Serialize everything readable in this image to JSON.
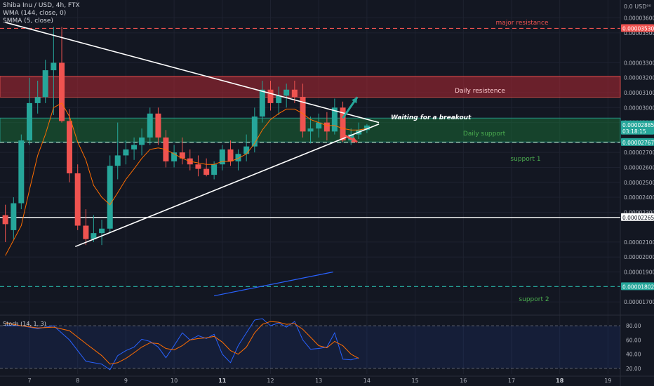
{
  "header": {
    "line1": "Shiba Inu / USD, 4h, FTX",
    "line2": "WMA (144, close, 0)",
    "line3": "SMMA (5, close)"
  },
  "stoch_label": "Stoch (14, 1, 3)",
  "colors": {
    "background": "#131722",
    "up": "#26a69a",
    "down": "#ef5350",
    "white": "#ffffff",
    "wma": "#2962ff",
    "smma": "#ff6d00",
    "resistance_zone": "#b22833",
    "support_zone": "#1b7a3a"
  },
  "chart_data": [
    {
      "type": "candlestick",
      "x_labels": [
        "7",
        "8",
        "9",
        "10",
        "11",
        "12",
        "13",
        "14",
        "15",
        "16",
        "17",
        "18",
        "19"
      ],
      "x_label_bold": [
        "11",
        "18"
      ],
      "y_ticks": [
        "0.00003600",
        "0.00003500",
        "0.00003300",
        "0.00003200",
        "0.00003100",
        "0.00003000",
        "0.00002900",
        "0.00002700",
        "0.00002600",
        "0.00002500",
        "0.00002400",
        "0.00002300",
        "0.00002100",
        "0.00002000",
        "0.00001900",
        "0.00001700"
      ],
      "y_tick_values": [
        3.6e-05,
        3.5e-05,
        3.3e-05,
        3.2e-05,
        3.1e-05,
        3e-05,
        2.9e-05,
        2.7e-05,
        2.6e-05,
        2.5e-05,
        2.4e-05,
        2.3e-05,
        2.1e-05,
        2e-05,
        1.9e-05,
        1.7e-05
      ],
      "y_top_label": "0.0 USD⁰⁰",
      "ylim": [
        1.63e-05,
        3.72e-05
      ],
      "price_tags": [
        {
          "label": "0.00003530",
          "value": 3.53e-05,
          "color": "#ef5350"
        },
        {
          "label": "0.00002885",
          "sublabel": "03:18:15",
          "value": 2.885e-05,
          "color": "#26a69a"
        },
        {
          "label": "0.00002767",
          "value": 2.767e-05,
          "color": "#26a69a"
        },
        {
          "label": "0.00002265",
          "value": 2.265e-05,
          "color": "#ffffff"
        },
        {
          "label": "0.00001802",
          "value": 1.802e-05,
          "color": "#26a69a"
        }
      ],
      "annotations": {
        "major_resistance": "major resistance",
        "daily_resistance": "Daily resistence",
        "waiting": "Waiting for a breakout",
        "daily_support": "Daily support",
        "support1": "support 1",
        "support2": "support 2"
      },
      "zones": {
        "daily_resistance": [
          3.07e-05,
          3.21e-05
        ],
        "daily_support": [
          2.77e-05,
          2.93e-05
        ]
      },
      "levels": {
        "major_resistance": 3.53e-05,
        "support1": 2.767e-05,
        "horizontal_white": 2.265e-05,
        "support2": 1.802e-05
      },
      "x_range_days": [
        6.6,
        19.6
      ],
      "candles": [
        {
          "t": 6.5,
          "o": 2.28e-05,
          "h": 2.35e-05,
          "l": 2.1e-05,
          "c": 2.22e-05
        },
        {
          "t": 6.67,
          "o": 2.18e-05,
          "h": 2.4e-05,
          "l": 2.12e-05,
          "c": 2.36e-05
        },
        {
          "t": 6.83,
          "o": 2.36e-05,
          "h": 2.82e-05,
          "l": 2.32e-05,
          "c": 2.78e-05
        },
        {
          "t": 7.0,
          "o": 2.78e-05,
          "h": 3.2e-05,
          "l": 2.75e-05,
          "c": 3.03e-05
        },
        {
          "t": 7.17,
          "o": 3.03e-05,
          "h": 3.18e-05,
          "l": 2.96e-05,
          "c": 3.07e-05
        },
        {
          "t": 7.33,
          "o": 3.07e-05,
          "h": 3.32e-05,
          "l": 3.03e-05,
          "c": 3.25e-05
        },
        {
          "t": 7.5,
          "o": 3.25e-05,
          "h": 3.54e-05,
          "l": 2.95e-05,
          "c": 3.3e-05
        },
        {
          "t": 7.67,
          "o": 3.3e-05,
          "h": 3.54e-05,
          "l": 2.9e-05,
          "c": 2.91e-05
        },
        {
          "t": 7.83,
          "o": 2.91e-05,
          "h": 2.99e-05,
          "l": 2.5e-05,
          "c": 2.56e-05
        },
        {
          "t": 8.0,
          "o": 2.56e-05,
          "h": 2.62e-05,
          "l": 2.18e-05,
          "c": 2.21e-05
        },
        {
          "t": 8.17,
          "o": 2.21e-05,
          "h": 2.32e-05,
          "l": 2.08e-05,
          "c": 2.12e-05
        },
        {
          "t": 8.33,
          "o": 2.12e-05,
          "h": 2.28e-05,
          "l": 2.1e-05,
          "c": 2.16e-05
        },
        {
          "t": 8.5,
          "o": 2.16e-05,
          "h": 2.25e-05,
          "l": 2.08e-05,
          "c": 2.19e-05
        },
        {
          "t": 8.67,
          "o": 2.19e-05,
          "h": 2.68e-05,
          "l": 2.16e-05,
          "c": 2.61e-05
        },
        {
          "t": 8.83,
          "o": 2.61e-05,
          "h": 2.9e-05,
          "l": 2.52e-05,
          "c": 2.68e-05
        },
        {
          "t": 9.0,
          "o": 2.68e-05,
          "h": 2.78e-05,
          "l": 2.62e-05,
          "c": 2.72e-05
        },
        {
          "t": 9.17,
          "o": 2.72e-05,
          "h": 2.8e-05,
          "l": 2.65e-05,
          "c": 2.75e-05
        },
        {
          "t": 9.33,
          "o": 2.75e-05,
          "h": 2.86e-05,
          "l": 2.68e-05,
          "c": 2.8e-05
        },
        {
          "t": 9.5,
          "o": 2.8e-05,
          "h": 3e-05,
          "l": 2.75e-05,
          "c": 2.96e-05
        },
        {
          "t": 9.67,
          "o": 2.96e-05,
          "h": 3e-05,
          "l": 2.75e-05,
          "c": 2.8e-05
        },
        {
          "t": 9.83,
          "o": 2.8e-05,
          "h": 2.85e-05,
          "l": 2.6e-05,
          "c": 2.64e-05
        },
        {
          "t": 10.0,
          "o": 2.64e-05,
          "h": 2.75e-05,
          "l": 2.6e-05,
          "c": 2.7e-05
        },
        {
          "t": 10.17,
          "o": 2.7e-05,
          "h": 2.8e-05,
          "l": 2.62e-05,
          "c": 2.66e-05
        },
        {
          "t": 10.33,
          "o": 2.66e-05,
          "h": 2.72e-05,
          "l": 2.58e-05,
          "c": 2.62e-05
        },
        {
          "t": 10.5,
          "o": 2.62e-05,
          "h": 2.68e-05,
          "l": 2.54e-05,
          "c": 2.59e-05
        },
        {
          "t": 10.67,
          "o": 2.59e-05,
          "h": 2.66e-05,
          "l": 2.54e-05,
          "c": 2.55e-05
        },
        {
          "t": 10.83,
          "o": 2.55e-05,
          "h": 2.64e-05,
          "l": 2.52e-05,
          "c": 2.62e-05
        },
        {
          "t": 11.0,
          "o": 2.62e-05,
          "h": 2.75e-05,
          "l": 2.58e-05,
          "c": 2.72e-05
        },
        {
          "t": 11.17,
          "o": 2.72e-05,
          "h": 2.78e-05,
          "l": 2.61e-05,
          "c": 2.64e-05
        },
        {
          "t": 11.33,
          "o": 2.64e-05,
          "h": 2.72e-05,
          "l": 2.58e-05,
          "c": 2.69e-05
        },
        {
          "t": 11.5,
          "o": 2.69e-05,
          "h": 2.82e-05,
          "l": 2.64e-05,
          "c": 2.74e-05
        },
        {
          "t": 11.67,
          "o": 2.74e-05,
          "h": 3e-05,
          "l": 2.7e-05,
          "c": 2.94e-05
        },
        {
          "t": 11.83,
          "o": 2.94e-05,
          "h": 3.18e-05,
          "l": 2.9e-05,
          "c": 3.12e-05
        },
        {
          "t": 12.0,
          "o": 3.12e-05,
          "h": 3.18e-05,
          "l": 2.98e-05,
          "c": 3.03e-05
        },
        {
          "t": 12.17,
          "o": 3.03e-05,
          "h": 3.14e-05,
          "l": 2.95e-05,
          "c": 3.08e-05
        },
        {
          "t": 12.33,
          "o": 3.08e-05,
          "h": 3.16e-05,
          "l": 3e-05,
          "c": 3.12e-05
        },
        {
          "t": 12.5,
          "o": 3.12e-05,
          "h": 3.18e-05,
          "l": 3.03e-05,
          "c": 3.07e-05
        },
        {
          "t": 12.67,
          "o": 3.07e-05,
          "h": 3.16e-05,
          "l": 2.8e-05,
          "c": 2.84e-05
        },
        {
          "t": 12.83,
          "o": 2.84e-05,
          "h": 2.94e-05,
          "l": 2.76e-05,
          "c": 2.86e-05
        },
        {
          "t": 13.0,
          "o": 2.86e-05,
          "h": 2.96e-05,
          "l": 2.8e-05,
          "c": 2.9e-05
        },
        {
          "t": 13.17,
          "o": 2.9e-05,
          "h": 2.97e-05,
          "l": 2.78e-05,
          "c": 2.84e-05
        },
        {
          "t": 13.33,
          "o": 2.84e-05,
          "h": 3.06e-05,
          "l": 2.82e-05,
          "c": 3e-05
        },
        {
          "t": 13.5,
          "o": 3e-05,
          "h": 3.04e-05,
          "l": 2.77e-05,
          "c": 2.78e-05
        },
        {
          "t": 13.67,
          "o": 2.78e-05,
          "h": 2.86e-05,
          "l": 2.75e-05,
          "c": 2.82e-05
        },
        {
          "t": 13.83,
          "o": 2.82e-05,
          "h": 2.9e-05,
          "l": 2.79e-05,
          "c": 2.85e-05
        },
        {
          "t": 14.0,
          "o": 2.85e-05,
          "h": 2.89e-05,
          "l": 2.83e-05,
          "c": 2.88e-05
        }
      ],
      "smma": [
        [
          6.5,
          2.01e-05
        ],
        [
          6.83,
          2.21e-05
        ],
        [
          7.0,
          2.45e-05
        ],
        [
          7.17,
          2.68e-05
        ],
        [
          7.33,
          2.82e-05
        ],
        [
          7.5,
          3e-05
        ],
        [
          7.67,
          3.03e-05
        ],
        [
          7.83,
          2.94e-05
        ],
        [
          8.0,
          2.77e-05
        ],
        [
          8.17,
          2.65e-05
        ],
        [
          8.33,
          2.48e-05
        ],
        [
          8.5,
          2.4e-05
        ],
        [
          8.67,
          2.35e-05
        ],
        [
          8.83,
          2.43e-05
        ],
        [
          9.0,
          2.52e-05
        ],
        [
          9.17,
          2.59e-05
        ],
        [
          9.33,
          2.66e-05
        ],
        [
          9.5,
          2.72e-05
        ],
        [
          9.67,
          2.73e-05
        ],
        [
          9.83,
          2.72e-05
        ],
        [
          10.0,
          2.69e-05
        ],
        [
          10.17,
          2.66e-05
        ],
        [
          10.33,
          2.64e-05
        ],
        [
          10.5,
          2.63e-05
        ],
        [
          10.67,
          2.62e-05
        ],
        [
          10.83,
          2.62e-05
        ],
        [
          11.0,
          2.64e-05
        ],
        [
          11.17,
          2.64e-05
        ],
        [
          11.33,
          2.66e-05
        ],
        [
          11.5,
          2.69e-05
        ],
        [
          11.67,
          2.76e-05
        ],
        [
          11.83,
          2.85e-05
        ],
        [
          12.0,
          2.92e-05
        ],
        [
          12.17,
          2.96e-05
        ],
        [
          12.33,
          2.99e-05
        ],
        [
          12.5,
          2.99e-05
        ],
        [
          12.67,
          2.96e-05
        ],
        [
          12.83,
          2.92e-05
        ],
        [
          13.0,
          2.9e-05
        ],
        [
          13.17,
          2.88e-05
        ],
        [
          13.33,
          2.88e-05
        ],
        [
          13.5,
          2.86e-05
        ],
        [
          13.67,
          2.85e-05
        ],
        [
          13.83,
          2.85e-05
        ],
        [
          14.0,
          2.86e-05
        ]
      ],
      "wma": [
        [
          10.83,
          1.74e-05
        ],
        [
          13.3,
          1.9e-05
        ]
      ],
      "triangle_lines": [
        [
          [
            6.5,
            3.57e-05
          ],
          [
            14.25,
            2.9e-05
          ]
        ],
        [
          [
            7.95,
            2.07e-05
          ],
          [
            14.25,
            2.89e-05
          ]
        ]
      ],
      "arrows": [
        {
          "from": [
            13.5,
            2.93e-05
          ],
          "to": [
            13.8,
            3.07e-05
          ],
          "color": "#26a69a"
        },
        {
          "from": [
            13.5,
            2.82e-05
          ],
          "to": [
            13.8,
            2.77e-05
          ],
          "color": "#ef5350"
        }
      ]
    },
    {
      "type": "line",
      "name": "stochastic",
      "y_ticks": [
        "80.00",
        "60.00",
        "40.00",
        "20.00"
      ],
      "y_tick_values": [
        80,
        60,
        40,
        20
      ],
      "band": [
        20,
        80
      ],
      "ylim": [
        12,
        92
      ],
      "k": [
        [
          6.5,
          80
        ],
        [
          6.83,
          80
        ],
        [
          7.17,
          76
        ],
        [
          7.5,
          80
        ],
        [
          7.83,
          60
        ],
        [
          8.17,
          30
        ],
        [
          8.5,
          26
        ],
        [
          8.67,
          18
        ],
        [
          8.83,
          38
        ],
        [
          9.0,
          45
        ],
        [
          9.17,
          50
        ],
        [
          9.33,
          61
        ],
        [
          9.5,
          58
        ],
        [
          9.67,
          50
        ],
        [
          9.83,
          35
        ],
        [
          10.0,
          52
        ],
        [
          10.17,
          70
        ],
        [
          10.33,
          60
        ],
        [
          10.5,
          66
        ],
        [
          10.67,
          62
        ],
        [
          10.83,
          68
        ],
        [
          11.0,
          40
        ],
        [
          11.17,
          28
        ],
        [
          11.33,
          52
        ],
        [
          11.5,
          70
        ],
        [
          11.67,
          88
        ],
        [
          11.83,
          90
        ],
        [
          12.0,
          80
        ],
        [
          12.17,
          84
        ],
        [
          12.33,
          78
        ],
        [
          12.5,
          86
        ],
        [
          12.67,
          60
        ],
        [
          12.83,
          47
        ],
        [
          13.0,
          48
        ],
        [
          13.17,
          50
        ],
        [
          13.33,
          70
        ],
        [
          13.5,
          33
        ],
        [
          13.67,
          32
        ],
        [
          13.83,
          35
        ]
      ],
      "d": [
        [
          6.5,
          84
        ],
        [
          6.83,
          80
        ],
        [
          7.17,
          77
        ],
        [
          7.5,
          78
        ],
        [
          7.83,
          73
        ],
        [
          8.17,
          55
        ],
        [
          8.5,
          38
        ],
        [
          8.67,
          26
        ],
        [
          8.83,
          28
        ],
        [
          9.0,
          34
        ],
        [
          9.17,
          42
        ],
        [
          9.33,
          50
        ],
        [
          9.5,
          56
        ],
        [
          9.67,
          55
        ],
        [
          9.83,
          48
        ],
        [
          10.0,
          46
        ],
        [
          10.17,
          52
        ],
        [
          10.33,
          60
        ],
        [
          10.5,
          62
        ],
        [
          10.67,
          63
        ],
        [
          10.83,
          65
        ],
        [
          11.0,
          57
        ],
        [
          11.17,
          45
        ],
        [
          11.33,
          40
        ],
        [
          11.5,
          50
        ],
        [
          11.67,
          70
        ],
        [
          11.83,
          82
        ],
        [
          12.0,
          86
        ],
        [
          12.17,
          85
        ],
        [
          12.33,
          82
        ],
        [
          12.5,
          83
        ],
        [
          12.67,
          75
        ],
        [
          12.83,
          64
        ],
        [
          13.0,
          52
        ],
        [
          13.17,
          49
        ],
        [
          13.33,
          58
        ],
        [
          13.5,
          52
        ],
        [
          13.67,
          40
        ],
        [
          13.83,
          34
        ]
      ]
    }
  ]
}
